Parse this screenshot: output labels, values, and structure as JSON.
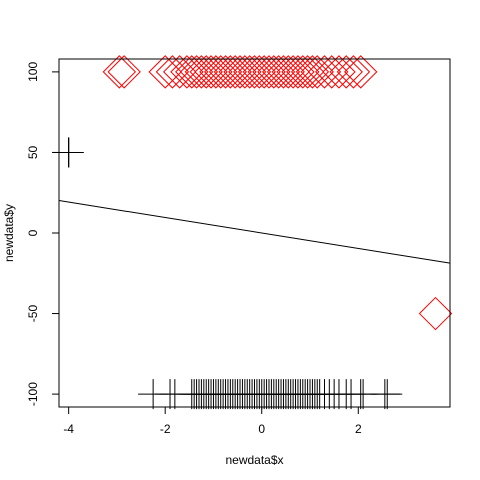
{
  "chart_data": {
    "type": "scatter",
    "xlabel": "newdata$x",
    "ylabel": "newdata$y",
    "xlim": [
      -4.2,
      3.9
    ],
    "ylim": [
      -108,
      108
    ],
    "x_ticks": [
      -4,
      -2,
      0,
      2
    ],
    "x_tick_labels": [
      "-4",
      "-2",
      "0",
      "2"
    ],
    "y_ticks": [
      -100,
      -50,
      0,
      50,
      100
    ],
    "y_tick_labels": [
      "-100",
      "-50",
      "0",
      "50",
      "100"
    ],
    "grid": false,
    "box": true,
    "colors": {
      "diamond": "#ff0000",
      "plus": "#000000",
      "line": "#000000"
    },
    "regression_line": {
      "intercept": 0.0,
      "slope": -4.8,
      "color": "#000000"
    },
    "series": [
      {
        "marker": "diamond",
        "color": "#ff0000",
        "points": [
          [
            -2.95,
            100
          ],
          [
            -2.85,
            100
          ],
          [
            -2.0,
            100
          ],
          [
            -1.85,
            100
          ],
          [
            -1.7,
            100
          ],
          [
            -1.55,
            100
          ],
          [
            -1.45,
            100
          ],
          [
            -1.35,
            100
          ],
          [
            -1.25,
            100
          ],
          [
            -1.15,
            100
          ],
          [
            -1.05,
            100
          ],
          [
            -0.95,
            100
          ],
          [
            -0.85,
            100
          ],
          [
            -0.75,
            100
          ],
          [
            -0.65,
            100
          ],
          [
            -0.55,
            100
          ],
          [
            -0.45,
            100
          ],
          [
            -0.35,
            100
          ],
          [
            -0.25,
            100
          ],
          [
            -0.15,
            100
          ],
          [
            -0.05,
            100
          ],
          [
            0.05,
            100
          ],
          [
            0.15,
            100
          ],
          [
            0.25,
            100
          ],
          [
            0.35,
            100
          ],
          [
            0.45,
            100
          ],
          [
            0.55,
            100
          ],
          [
            0.65,
            100
          ],
          [
            0.75,
            100
          ],
          [
            0.85,
            100
          ],
          [
            0.95,
            100
          ],
          [
            1.05,
            100
          ],
          [
            1.15,
            100
          ],
          [
            1.3,
            100
          ],
          [
            1.45,
            100
          ],
          [
            1.6,
            100
          ],
          [
            1.75,
            100
          ],
          [
            1.9,
            100
          ],
          [
            2.05,
            100
          ],
          [
            3.6,
            -50
          ]
        ]
      },
      {
        "marker": "plus",
        "color": "#000000",
        "points": [
          [
            -4.0,
            50
          ],
          [
            -4.0,
            50
          ],
          [
            -4.0,
            50
          ],
          [
            -2.25,
            -100
          ],
          [
            -1.9,
            -100
          ],
          [
            -1.8,
            -100
          ],
          [
            -1.45,
            -100
          ],
          [
            -1.4,
            -100
          ],
          [
            -1.35,
            -100
          ],
          [
            -1.3,
            -100
          ],
          [
            -1.25,
            -100
          ],
          [
            -1.2,
            -100
          ],
          [
            -1.15,
            -100
          ],
          [
            -1.1,
            -100
          ],
          [
            -1.05,
            -100
          ],
          [
            -1.0,
            -100
          ],
          [
            -0.95,
            -100
          ],
          [
            -0.9,
            -100
          ],
          [
            -0.85,
            -100
          ],
          [
            -0.8,
            -100
          ],
          [
            -0.75,
            -100
          ],
          [
            -0.7,
            -100
          ],
          [
            -0.65,
            -100
          ],
          [
            -0.6,
            -100
          ],
          [
            -0.55,
            -100
          ],
          [
            -0.5,
            -100
          ],
          [
            -0.45,
            -100
          ],
          [
            -0.4,
            -100
          ],
          [
            -0.35,
            -100
          ],
          [
            -0.3,
            -100
          ],
          [
            -0.25,
            -100
          ],
          [
            -0.2,
            -100
          ],
          [
            -0.15,
            -100
          ],
          [
            -0.1,
            -100
          ],
          [
            -0.05,
            -100
          ],
          [
            0.0,
            -100
          ],
          [
            0.05,
            -100
          ],
          [
            0.1,
            -100
          ],
          [
            0.15,
            -100
          ],
          [
            0.2,
            -100
          ],
          [
            0.25,
            -100
          ],
          [
            0.3,
            -100
          ],
          [
            0.35,
            -100
          ],
          [
            0.4,
            -100
          ],
          [
            0.45,
            -100
          ],
          [
            0.5,
            -100
          ],
          [
            0.55,
            -100
          ],
          [
            0.6,
            -100
          ],
          [
            0.65,
            -100
          ],
          [
            0.7,
            -100
          ],
          [
            0.75,
            -100
          ],
          [
            0.8,
            -100
          ],
          [
            0.85,
            -100
          ],
          [
            0.9,
            -100
          ],
          [
            0.95,
            -100
          ],
          [
            1.0,
            -100
          ],
          [
            1.05,
            -100
          ],
          [
            1.1,
            -100
          ],
          [
            1.15,
            -100
          ],
          [
            1.2,
            -100
          ],
          [
            1.3,
            -100
          ],
          [
            1.4,
            -100
          ],
          [
            1.5,
            -100
          ],
          [
            1.6,
            -100
          ],
          [
            1.75,
            -100
          ],
          [
            1.85,
            -100
          ],
          [
            2.05,
            -100
          ],
          [
            2.1,
            -100
          ],
          [
            2.55,
            -100
          ],
          [
            2.6,
            -100
          ]
        ]
      }
    ]
  }
}
